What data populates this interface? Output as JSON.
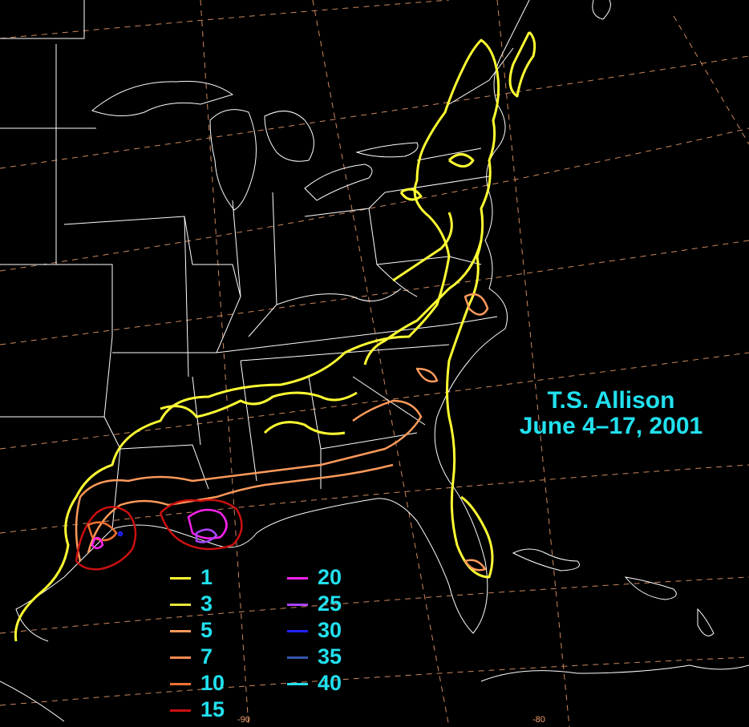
{
  "map": {
    "title_line1": "T.S. Allison",
    "title_line2": "June 4–17, 2001",
    "longitude_labels": [
      "-90",
      "-80"
    ],
    "background_color": "#000000",
    "border_color": "#ffffff",
    "graticule_color": "#f0a070",
    "label_color": "#22e0ee"
  },
  "legend": {
    "items": [
      {
        "value": "1",
        "color": "#ffff33"
      },
      {
        "value": "3",
        "color": "#e8e83a"
      },
      {
        "value": "5",
        "color": "#ff9a5a"
      },
      {
        "value": "7",
        "color": "#ff8a50"
      },
      {
        "value": "10",
        "color": "#f07030"
      },
      {
        "value": "15",
        "color": "#cc1010"
      },
      {
        "value": "20",
        "color": "#ff22ee"
      },
      {
        "value": "25",
        "color": "#aa44ff"
      },
      {
        "value": "30",
        "color": "#2222ff"
      },
      {
        "value": "35",
        "color": "#3355aa"
      },
      {
        "value": "40",
        "color": "#22e0ee"
      }
    ]
  }
}
